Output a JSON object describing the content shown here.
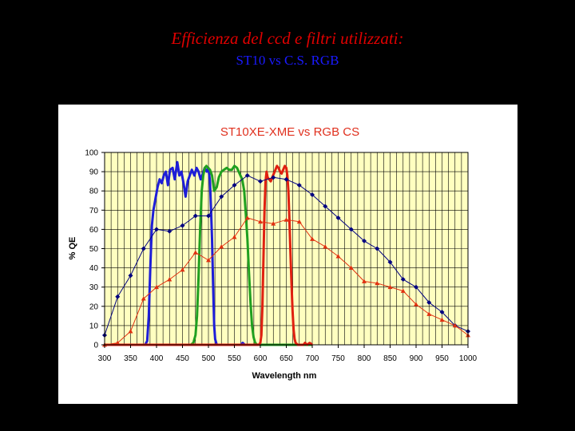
{
  "slide": {
    "title": "Efficienza del ccd e filtri utilizzati:",
    "subtitle": "ST10 vs C.S. RGB"
  },
  "chart_data": {
    "type": "line",
    "title": "ST10XE-XME vs RGB CS",
    "xlabel": "Wavelength nm",
    "ylabel": "% QE",
    "xlim": [
      300,
      1000
    ],
    "ylim": [
      0,
      100
    ],
    "xticks": [
      300,
      350,
      400,
      450,
      500,
      550,
      600,
      650,
      700,
      750,
      800,
      850,
      900,
      950,
      1000
    ],
    "yticks": [
      0,
      10,
      20,
      30,
      40,
      50,
      60,
      70,
      80,
      90,
      100
    ],
    "grid": true,
    "plot_background": "#ffffc0",
    "series": [
      {
        "color": "#000080",
        "marker": "diamond",
        "points": [
          [
            300,
            5
          ],
          [
            325,
            25
          ],
          [
            350,
            36
          ],
          [
            375,
            50
          ],
          [
            400,
            60
          ],
          [
            425,
            59
          ],
          [
            450,
            62
          ],
          [
            475,
            67
          ],
          [
            500,
            67
          ],
          [
            525,
            77
          ],
          [
            550,
            83
          ],
          [
            575,
            88
          ],
          [
            600,
            85
          ],
          [
            625,
            87
          ],
          [
            650,
            86
          ],
          [
            675,
            83
          ],
          [
            700,
            78
          ],
          [
            725,
            72
          ],
          [
            750,
            66
          ],
          [
            775,
            60
          ],
          [
            800,
            54
          ],
          [
            825,
            50
          ],
          [
            850,
            43
          ],
          [
            875,
            34
          ],
          [
            900,
            30
          ],
          [
            925,
            22
          ],
          [
            950,
            17
          ],
          [
            975,
            10
          ],
          [
            1000,
            7
          ]
        ]
      },
      {
        "color": "#e03010",
        "marker": "triangle",
        "points": [
          [
            300,
            0
          ],
          [
            325,
            1
          ],
          [
            350,
            7
          ],
          [
            375,
            24
          ],
          [
            400,
            30
          ],
          [
            425,
            34
          ],
          [
            450,
            39
          ],
          [
            475,
            48
          ],
          [
            500,
            44
          ],
          [
            525,
            51
          ],
          [
            550,
            56
          ],
          [
            575,
            66
          ],
          [
            600,
            64
          ],
          [
            625,
            63
          ],
          [
            650,
            65
          ],
          [
            675,
            64
          ],
          [
            700,
            55
          ],
          [
            725,
            51
          ],
          [
            750,
            46
          ],
          [
            775,
            40
          ],
          [
            800,
            33
          ],
          [
            825,
            32
          ],
          [
            850,
            30
          ],
          [
            875,
            28
          ],
          [
            900,
            21
          ],
          [
            925,
            16
          ],
          [
            950,
            13
          ],
          [
            975,
            10
          ],
          [
            1000,
            5
          ]
        ]
      },
      {
        "color": "#1e1ed8",
        "marker": "none",
        "points": [
          [
            300,
            0
          ],
          [
            378,
            0
          ],
          [
            382,
            2
          ],
          [
            385,
            15
          ],
          [
            388,
            40
          ],
          [
            391,
            62
          ],
          [
            394,
            70
          ],
          [
            398,
            76
          ],
          [
            402,
            82
          ],
          [
            406,
            86
          ],
          [
            410,
            84
          ],
          [
            414,
            88
          ],
          [
            418,
            90
          ],
          [
            422,
            83
          ],
          [
            426,
            91
          ],
          [
            431,
            92
          ],
          [
            435,
            86
          ],
          [
            440,
            95
          ],
          [
            444,
            88
          ],
          [
            448,
            90
          ],
          [
            452,
            84
          ],
          [
            456,
            77
          ],
          [
            460,
            85
          ],
          [
            464,
            88
          ],
          [
            468,
            91
          ],
          [
            473,
            88
          ],
          [
            477,
            92
          ],
          [
            481,
            90
          ],
          [
            485,
            86
          ],
          [
            489,
            89
          ],
          [
            493,
            92
          ],
          [
            497,
            90
          ],
          [
            500,
            92
          ],
          [
            503,
            85
          ],
          [
            505,
            70
          ],
          [
            507,
            55
          ],
          [
            509,
            30
          ],
          [
            511,
            10
          ],
          [
            513,
            3
          ],
          [
            516,
            0
          ],
          [
            562,
            0
          ],
          [
            566,
            1
          ],
          [
            570,
            0
          ],
          [
            700,
            0
          ]
        ]
      },
      {
        "color": "#20a020",
        "marker": "none",
        "points": [
          [
            300,
            0
          ],
          [
            466,
            0
          ],
          [
            471,
            1
          ],
          [
            475,
            5
          ],
          [
            478,
            15
          ],
          [
            481,
            35
          ],
          [
            484,
            60
          ],
          [
            487,
            80
          ],
          [
            490,
            88
          ],
          [
            493,
            92
          ],
          [
            496,
            93
          ],
          [
            499,
            92
          ],
          [
            503,
            91
          ],
          [
            507,
            88
          ],
          [
            511,
            80
          ],
          [
            516,
            82
          ],
          [
            520,
            87
          ],
          [
            525,
            90
          ],
          [
            530,
            91
          ],
          [
            535,
            92
          ],
          [
            540,
            91
          ],
          [
            545,
            91
          ],
          [
            550,
            93
          ],
          [
            555,
            92
          ],
          [
            560,
            89
          ],
          [
            565,
            86
          ],
          [
            569,
            80
          ],
          [
            572,
            68
          ],
          [
            575,
            55
          ],
          [
            578,
            38
          ],
          [
            581,
            22
          ],
          [
            584,
            10
          ],
          [
            587,
            4
          ],
          [
            590,
            1
          ],
          [
            594,
            0
          ],
          [
            700,
            0
          ]
        ]
      },
      {
        "color": "#e02010",
        "marker": "none",
        "points": [
          [
            300,
            0
          ],
          [
            597,
            0
          ],
          [
            600,
            1
          ],
          [
            602,
            5
          ],
          [
            604,
            20
          ],
          [
            606,
            45
          ],
          [
            608,
            70
          ],
          [
            610,
            85
          ],
          [
            612,
            90
          ],
          [
            614,
            87
          ],
          [
            617,
            86
          ],
          [
            620,
            85
          ],
          [
            623,
            87
          ],
          [
            626,
            89
          ],
          [
            629,
            91
          ],
          [
            632,
            93
          ],
          [
            635,
            92
          ],
          [
            638,
            90
          ],
          [
            641,
            89
          ],
          [
            644,
            91
          ],
          [
            647,
            93
          ],
          [
            650,
            92
          ],
          [
            652,
            88
          ],
          [
            654,
            80
          ],
          [
            656,
            65
          ],
          [
            658,
            48
          ],
          [
            660,
            32
          ],
          [
            662,
            18
          ],
          [
            664,
            8
          ],
          [
            666,
            3
          ],
          [
            668,
            1
          ],
          [
            672,
            0
          ],
          [
            683,
            0
          ],
          [
            686,
            1
          ],
          [
            690,
            0
          ],
          [
            695,
            1
          ],
          [
            700,
            0
          ]
        ]
      }
    ]
  }
}
